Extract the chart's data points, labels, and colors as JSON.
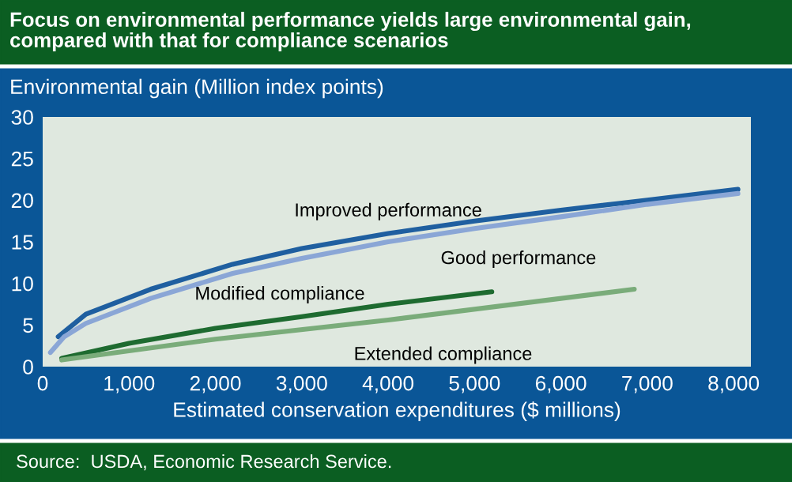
{
  "chart_data": {
    "type": "line",
    "title": "Focus on environmental performance yields large environmental gain,\ncompared with that for compliance scenarios",
    "ylabel": "Environmental gain (Million index points)",
    "xlabel": "Estimated conservation expenditures ($ millions)",
    "xlim": [
      0,
      8200
    ],
    "xticks": [
      0,
      {
        "value": 1000,
        "label": "1,000"
      },
      {
        "value": 2000,
        "label": "2,000"
      },
      {
        "value": 3000,
        "label": "3,000"
      },
      {
        "value": 4000,
        "label": "4,000"
      },
      {
        "value": 5000,
        "label": "5,000"
      },
      {
        "value": 6000,
        "label": "6,000"
      },
      {
        "value": 7000,
        "label": "7,000"
      },
      {
        "value": 8000,
        "label": "8,000"
      }
    ],
    "ylim": [
      0,
      30
    ],
    "yticks": [
      0,
      5,
      10,
      15,
      20,
      25,
      30
    ],
    "grid": false,
    "legend": false,
    "series": [
      {
        "name": "Improved performance",
        "color": "#1f5fa0",
        "x": [
          180,
          500,
          1250,
          2200,
          3000,
          4000,
          5000,
          6000,
          7000,
          8050
        ],
        "values": [
          3.6,
          6.3,
          9.3,
          12.3,
          14.2,
          16.0,
          17.5,
          18.8,
          20.0,
          21.3
        ]
      },
      {
        "name": "Good performance",
        "color": "#8aa6d6",
        "x": [
          90,
          250,
          500,
          1250,
          2200,
          3000,
          4000,
          5000,
          6000,
          7000,
          8050
        ],
        "values": [
          1.7,
          3.6,
          5.2,
          8.2,
          11.2,
          13.0,
          15.0,
          16.6,
          18.0,
          19.5,
          20.8
        ]
      },
      {
        "name": "Modified compliance",
        "color": "#1e6b30",
        "x": [
          220,
          1000,
          2000,
          3000,
          4000,
          5200
        ],
        "values": [
          1.0,
          2.8,
          4.6,
          6.0,
          7.5,
          9.0
        ]
      },
      {
        "name": "Extended compliance",
        "color": "#7aac7a",
        "x": [
          220,
          2000,
          4000,
          6850
        ],
        "values": [
          0.8,
          3.3,
          5.6,
          9.3
        ]
      }
    ],
    "annotations": [
      "Source:  USDA, Economic Research Service."
    ]
  }
}
